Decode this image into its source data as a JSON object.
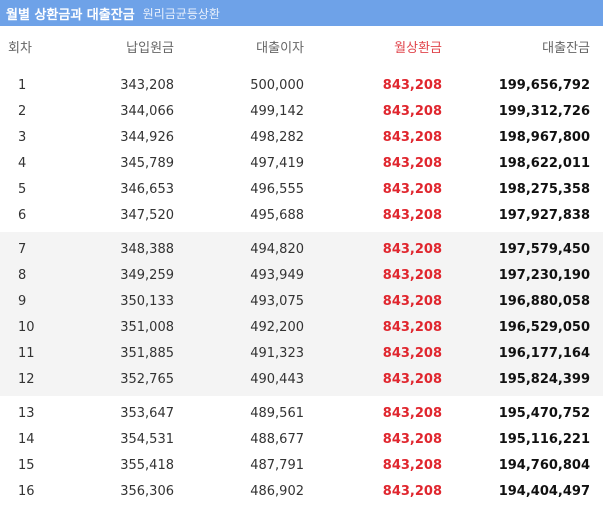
{
  "header": {
    "title": "월별 상환금과 대출잔금",
    "subtitle": "원리금균등상환"
  },
  "columns": {
    "no": "회차",
    "principal": "납입원금",
    "interest": "대출이자",
    "payment": "월상환금",
    "balance": "대출잔금"
  },
  "groups": [
    {
      "rows": [
        {
          "no": "1",
          "principal": "343,208",
          "interest": "500,000",
          "payment": "843,208",
          "balance": "199,656,792"
        },
        {
          "no": "2",
          "principal": "344,066",
          "interest": "499,142",
          "payment": "843,208",
          "balance": "199,312,726"
        },
        {
          "no": "3",
          "principal": "344,926",
          "interest": "498,282",
          "payment": "843,208",
          "balance": "198,967,800"
        },
        {
          "no": "4",
          "principal": "345,789",
          "interest": "497,419",
          "payment": "843,208",
          "balance": "198,622,011"
        },
        {
          "no": "5",
          "principal": "346,653",
          "interest": "496,555",
          "payment": "843,208",
          "balance": "198,275,358"
        },
        {
          "no": "6",
          "principal": "347,520",
          "interest": "495,688",
          "payment": "843,208",
          "balance": "197,927,838"
        }
      ]
    },
    {
      "rows": [
        {
          "no": "7",
          "principal": "348,388",
          "interest": "494,820",
          "payment": "843,208",
          "balance": "197,579,450"
        },
        {
          "no": "8",
          "principal": "349,259",
          "interest": "493,949",
          "payment": "843,208",
          "balance": "197,230,190"
        },
        {
          "no": "9",
          "principal": "350,133",
          "interest": "493,075",
          "payment": "843,208",
          "balance": "196,880,058"
        },
        {
          "no": "10",
          "principal": "351,008",
          "interest": "492,200",
          "payment": "843,208",
          "balance": "196,529,050"
        },
        {
          "no": "11",
          "principal": "351,885",
          "interest": "491,323",
          "payment": "843,208",
          "balance": "196,177,164"
        },
        {
          "no": "12",
          "principal": "352,765",
          "interest": "490,443",
          "payment": "843,208",
          "balance": "195,824,399"
        }
      ]
    },
    {
      "rows": [
        {
          "no": "13",
          "principal": "353,647",
          "interest": "489,561",
          "payment": "843,208",
          "balance": "195,470,752"
        },
        {
          "no": "14",
          "principal": "354,531",
          "interest": "488,677",
          "payment": "843,208",
          "balance": "195,116,221"
        },
        {
          "no": "15",
          "principal": "355,418",
          "interest": "487,791",
          "payment": "843,208",
          "balance": "194,760,804"
        },
        {
          "no": "16",
          "principal": "356,306",
          "interest": "486,902",
          "payment": "843,208",
          "balance": "194,404,497"
        }
      ]
    }
  ]
}
